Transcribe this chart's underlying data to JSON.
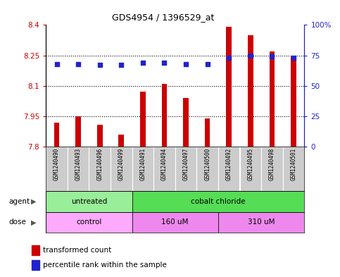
{
  "title": "GDS4954 / 1396529_at",
  "samples": [
    "GSM1240490",
    "GSM1240493",
    "GSM1240496",
    "GSM1240499",
    "GSM1240491",
    "GSM1240494",
    "GSM1240497",
    "GSM1240500",
    "GSM1240492",
    "GSM1240495",
    "GSM1240498",
    "GSM1240501"
  ],
  "bar_values": [
    7.92,
    7.95,
    7.91,
    7.86,
    8.07,
    8.11,
    8.04,
    7.94,
    8.39,
    8.35,
    8.27,
    8.25
  ],
  "percentile_values": [
    68,
    68,
    67,
    67,
    69,
    69,
    68,
    68,
    73,
    75,
    74,
    73
  ],
  "bar_color": "#cc0000",
  "percentile_color": "#2222cc",
  "ylim_left": [
    7.8,
    8.4
  ],
  "ylim_right": [
    0,
    100
  ],
  "yticks_left": [
    7.8,
    7.95,
    8.1,
    8.25,
    8.4
  ],
  "yticks_right": [
    0,
    25,
    50,
    75,
    100
  ],
  "ytick_labels_left": [
    "7.8",
    "7.95",
    "8.1",
    "8.25",
    "8.4"
  ],
  "ytick_labels_right": [
    "0",
    "25",
    "50",
    "75",
    "100%"
  ],
  "hlines": [
    7.95,
    8.1,
    8.25
  ],
  "agent_groups": [
    {
      "label": "untreated",
      "start": 0,
      "end": 4,
      "color": "#99ee99"
    },
    {
      "label": "cobalt chloride",
      "start": 4,
      "end": 12,
      "color": "#55dd55"
    }
  ],
  "dose_groups": [
    {
      "label": "control",
      "start": 0,
      "end": 4,
      "color": "#ffaaff"
    },
    {
      "label": "160 uM",
      "start": 4,
      "end": 8,
      "color": "#ee88ee"
    },
    {
      "label": "310 uM",
      "start": 8,
      "end": 12,
      "color": "#ee88ee"
    }
  ],
  "legend_bar_label": "transformed count",
  "legend_dot_label": "percentile rank within the sample",
  "bar_width": 0.25,
  "agent_label": "agent",
  "dose_label": "dose",
  "background_color": "#ffffff",
  "plot_bg_color": "#ffffff",
  "tick_label_color_left": "#cc0000",
  "tick_label_color_right": "#2222cc",
  "sample_box_color": "#cccccc",
  "border_color": "#000000"
}
